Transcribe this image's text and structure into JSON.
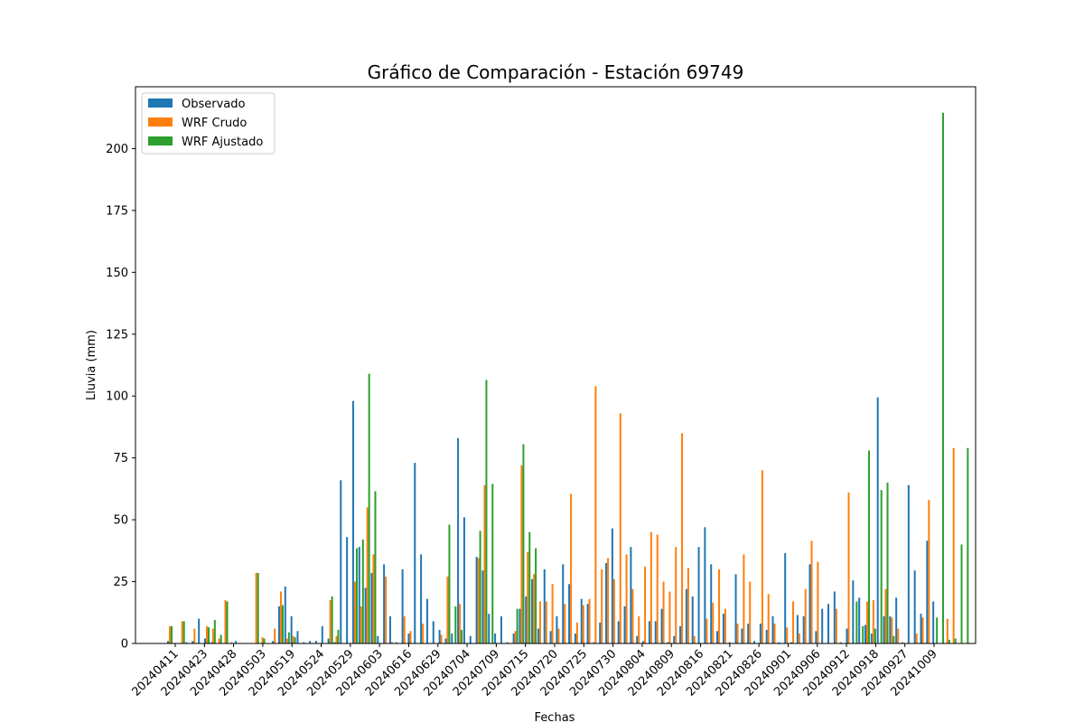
{
  "chart_data": {
    "type": "bar",
    "title": "Gráfico de Comparación - Estación 69749",
    "xlabel": "Fechas",
    "ylabel": "Lluvia (mm)",
    "ylim": [
      0,
      225
    ],
    "yticks": [
      0,
      25,
      50,
      75,
      100,
      125,
      150,
      175,
      200
    ],
    "xtick_labels": [
      "20240411",
      "20240423",
      "20240428",
      "20240503",
      "20240519",
      "20240524",
      "20240529",
      "20240603",
      "20240616",
      "20240629",
      "20240704",
      "20240709",
      "20240715",
      "20240720",
      "20240725",
      "20240730",
      "20240804",
      "20240809",
      "20240816",
      "20240821",
      "20240826",
      "20240901",
      "20240906",
      "20240912",
      "20240918",
      "20240927",
      "20241009"
    ],
    "legend": {
      "position": "top-left"
    },
    "grid": false,
    "series": [
      {
        "name": "Observado",
        "color": "#1f77b4",
        "values": [
          1,
          0,
          0,
          0.5,
          1,
          10,
          2,
          0.5,
          0,
          0,
          0,
          1,
          0,
          0,
          0,
          0,
          0,
          1,
          15,
          23,
          11,
          5,
          0.5,
          1,
          1,
          7,
          2,
          0.5,
          66,
          43,
          98,
          39,
          22.5,
          28.5,
          3,
          32,
          11,
          0.5,
          30,
          4,
          73,
          36,
          18,
          9,
          5.5,
          2,
          4,
          83,
          51,
          3,
          35,
          29.5,
          12,
          4,
          11,
          0.5,
          4,
          14,
          19,
          26,
          6,
          30,
          5,
          11,
          32,
          24,
          4,
          18,
          16,
          0.5,
          8.5,
          32.5,
          46.5,
          9,
          15,
          39,
          3,
          1,
          9,
          9,
          14,
          0.5,
          3,
          7,
          22,
          19,
          39,
          47,
          32,
          5,
          12,
          0.5,
          28,
          6,
          8,
          1,
          8,
          5.5,
          11,
          0.5,
          36.5,
          0.5,
          11.5,
          11,
          32,
          5,
          14,
          16,
          21,
          0.5,
          6,
          25.5,
          18.5,
          7.5,
          4,
          99.5,
          11,
          11,
          18.5,
          0.5,
          64,
          29.5,
          12,
          41.5,
          17,
          0
        ]
      },
      {
        "name": "WRF Crudo",
        "color": "#ff7f0e",
        "values": [
          7,
          0,
          9,
          0,
          6,
          0,
          7,
          6,
          2,
          17.5,
          0.5,
          0,
          0,
          0,
          28.5,
          2.5,
          0,
          6,
          21,
          2,
          3,
          0,
          0,
          0,
          0,
          0,
          17.5,
          3,
          0,
          0,
          25,
          15,
          55,
          36,
          0,
          27,
          0.5,
          0,
          11,
          5,
          0,
          8,
          0,
          0,
          3.5,
          27,
          0,
          16,
          0,
          0,
          34.5,
          64,
          0,
          0,
          0,
          0,
          5,
          72,
          37,
          28,
          17,
          17,
          24,
          6,
          16,
          60.5,
          8.5,
          15.5,
          18,
          104,
          30,
          34.5,
          26,
          93,
          36,
          22,
          11,
          31,
          45,
          44,
          25,
          21,
          39,
          85,
          30.5,
          3,
          0,
          10,
          16.5,
          30,
          14,
          0,
          8,
          36,
          25,
          0,
          70,
          20,
          8,
          0,
          6.5,
          17,
          4,
          22,
          41.5,
          33,
          0,
          0,
          14,
          0,
          61,
          0,
          0,
          17,
          17.5,
          0,
          22,
          10.5,
          6,
          0,
          0,
          4,
          10.5,
          58,
          0,
          0,
          10,
          79
        ]
      },
      {
        "name": "WRF Ajustado",
        "color": "#2ca02c",
        "values": [
          7,
          0,
          9,
          0,
          0,
          0,
          6.5,
          9.5,
          3.5,
          17,
          0,
          0,
          0,
          0,
          28.5,
          2,
          0,
          0,
          15.5,
          4.5,
          2.5,
          0,
          0,
          0,
          0,
          0,
          19,
          5.5,
          0,
          0,
          38.5,
          42,
          109,
          61.5,
          0,
          0,
          0,
          0,
          0,
          0,
          0,
          0,
          0,
          0,
          0,
          48,
          15,
          5.5,
          0,
          0,
          45.5,
          106.5,
          64.5,
          0,
          0,
          0,
          14,
          80.5,
          45,
          38.5,
          0,
          0,
          0,
          0,
          0,
          0,
          0,
          0,
          0,
          0,
          0,
          0,
          0,
          0,
          0,
          0,
          0,
          0,
          0,
          0,
          0,
          0,
          0,
          0,
          0,
          0,
          0,
          0,
          0,
          0,
          0,
          0,
          0,
          0,
          0,
          0,
          0,
          0,
          0,
          0,
          0,
          0,
          0,
          0,
          0,
          0,
          0,
          0,
          0,
          0,
          0,
          17,
          7,
          78,
          6,
          62,
          65,
          3,
          0,
          0,
          0,
          0,
          0,
          0,
          10.5,
          214.5,
          1.5,
          2,
          40,
          79
        ]
      }
    ]
  }
}
